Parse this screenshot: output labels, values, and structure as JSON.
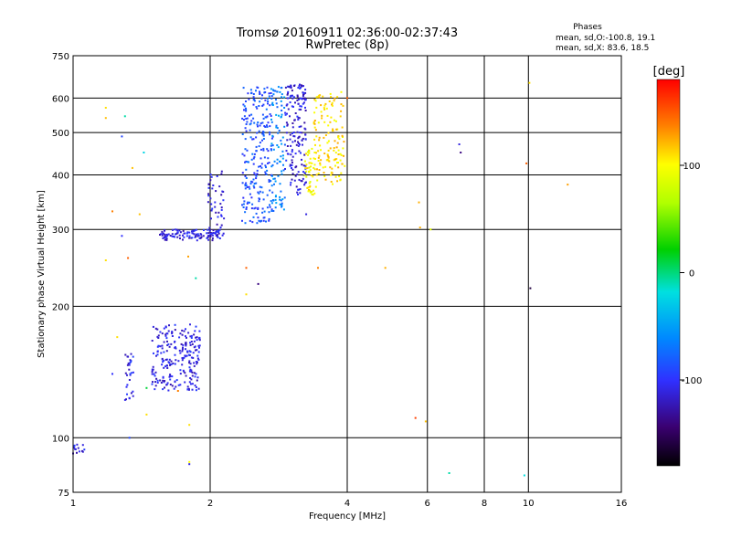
{
  "chart_data": {
    "type": "scatter",
    "title": "Tromsø 20160911 02:36:00-02:37:43",
    "subtitle": "RwPretec (8p)",
    "xlabel": "Frequency [MHz]",
    "ylabel": "Stationary phase Virtual Height [km]",
    "xscale": "log",
    "yscale": "log",
    "xlim": [
      1,
      16
    ],
    "ylim": [
      75,
      750
    ],
    "xticks": [
      "1",
      "2",
      "4",
      "6",
      "8",
      "10",
      "16"
    ],
    "yticks": [
      "75",
      "100",
      "200",
      "300",
      "400",
      "500",
      "600",
      "750"
    ],
    "grid": true,
    "legend_title": "Phases",
    "legend_lines": [
      "mean, sd,O:-100.8, 19.1",
      "mean, sd,X:  83.6, 18.5"
    ],
    "colorbar": {
      "label": "[deg]",
      "range": [
        -180,
        180
      ],
      "ticks": [
        "100",
        "0",
        "-100"
      ]
    },
    "clusters": [
      {
        "name": "",
        "fmin": 1.49,
        "fmax": 1.9,
        "hmin": 128,
        "hmax": 182,
        "phase": -110,
        "count": 230
      },
      {
        "name": "",
        "fmin": 1.3,
        "fmax": 1.36,
        "hmin": 122,
        "hmax": 160,
        "phase": -105,
        "count": 30
      },
      {
        "name": "",
        "fmin": 1.0,
        "fmax": 1.07,
        "hmin": 92,
        "hmax": 97,
        "phase": -110,
        "count": 14
      },
      {
        "name": "",
        "fmin": 1.55,
        "fmax": 2.12,
        "hmin": 283,
        "hmax": 300,
        "phase": -110,
        "count": 110
      },
      {
        "name": "",
        "fmin": 1.98,
        "fmax": 2.15,
        "hmin": 290,
        "hmax": 410,
        "phase": -110,
        "count": 50
      },
      {
        "name": "",
        "fmin": 2.35,
        "fmax": 2.75,
        "hmin": 310,
        "hmax": 640,
        "phase": -85,
        "count": 240
      },
      {
        "name": "",
        "fmin": 2.72,
        "fmax": 2.92,
        "hmin": 330,
        "hmax": 640,
        "phase": -62,
        "count": 90
      },
      {
        "name": "",
        "fmin": 2.92,
        "fmax": 3.25,
        "hmin": 360,
        "hmax": 650,
        "phase": -112,
        "count": 170
      },
      {
        "name": "",
        "fmin": 3.22,
        "fmax": 3.42,
        "hmin": 360,
        "hmax": 460,
        "phase": 100,
        "count": 45
      },
      {
        "name": "",
        "fmin": 3.38,
        "fmax": 3.95,
        "hmin": 380,
        "hmax": 620,
        "phase": 110,
        "count": 140
      }
    ],
    "isolated_points": [
      {
        "f": 1.18,
        "h": 570,
        "phase": 110
      },
      {
        "f": 1.18,
        "h": 540,
        "phase": 120
      },
      {
        "f": 1.3,
        "h": 545,
        "phase": -10
      },
      {
        "f": 1.28,
        "h": 490,
        "phase": -90
      },
      {
        "f": 1.35,
        "h": 415,
        "phase": 120
      },
      {
        "f": 1.43,
        "h": 450,
        "phase": -25
      },
      {
        "f": 1.22,
        "h": 330,
        "phase": 140
      },
      {
        "f": 1.28,
        "h": 290,
        "phase": -100
      },
      {
        "f": 1.4,
        "h": 325,
        "phase": 120
      },
      {
        "f": 1.18,
        "h": 255,
        "phase": 110
      },
      {
        "f": 1.32,
        "h": 258,
        "phase": 150
      },
      {
        "f": 1.79,
        "h": 260,
        "phase": 130
      },
      {
        "f": 1.86,
        "h": 232,
        "phase": -10
      },
      {
        "f": 1.25,
        "h": 170,
        "phase": 110
      },
      {
        "f": 1.22,
        "h": 140,
        "phase": -100
      },
      {
        "f": 1.45,
        "h": 130,
        "phase": 10
      },
      {
        "f": 1.45,
        "h": 113,
        "phase": 110
      },
      {
        "f": 1.7,
        "h": 128,
        "phase": 140
      },
      {
        "f": 1.8,
        "h": 107,
        "phase": 110
      },
      {
        "f": 1.33,
        "h": 100,
        "phase": -90
      },
      {
        "f": 1.8,
        "h": 87,
        "phase": -110
      },
      {
        "f": 1.8,
        "h": 88,
        "phase": 100
      },
      {
        "f": 2.4,
        "h": 245,
        "phase": 150
      },
      {
        "f": 2.55,
        "h": 225,
        "phase": -140
      },
      {
        "f": 2.4,
        "h": 213,
        "phase": 110
      },
      {
        "f": 3.25,
        "h": 325,
        "phase": -110
      },
      {
        "f": 3.45,
        "h": 245,
        "phase": 140
      },
      {
        "f": 4.0,
        "h": 600,
        "phase": 150
      },
      {
        "f": 4.85,
        "h": 245,
        "phase": 125
      },
      {
        "f": 5.75,
        "h": 346,
        "phase": 125
      },
      {
        "f": 5.78,
        "h": 303,
        "phase": 125
      },
      {
        "f": 5.65,
        "h": 111,
        "phase": 160
      },
      {
        "f": 5.95,
        "h": 109,
        "phase": 120
      },
      {
        "f": 6.1,
        "h": 300,
        "phase": 90
      },
      {
        "f": 6.7,
        "h": 83,
        "phase": -10
      },
      {
        "f": 7.05,
        "h": 470,
        "phase": -110
      },
      {
        "f": 7.1,
        "h": 450,
        "phase": -140
      },
      {
        "f": 9.8,
        "h": 82,
        "phase": -20
      },
      {
        "f": 9.9,
        "h": 425,
        "phase": 150
      },
      {
        "f": 10.05,
        "h": 650,
        "phase": 110
      },
      {
        "f": 10.1,
        "h": 220,
        "phase": -160
      },
      {
        "f": 12.2,
        "h": 380,
        "phase": 130
      }
    ]
  }
}
